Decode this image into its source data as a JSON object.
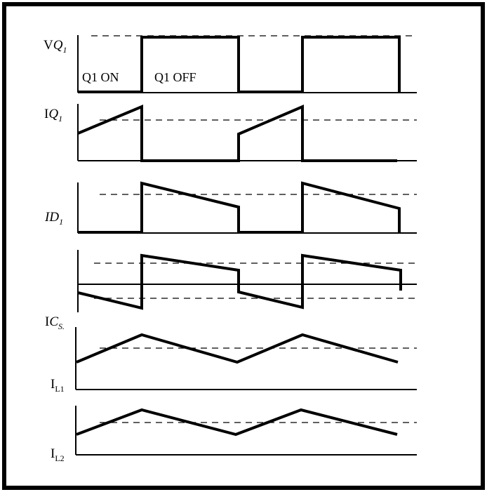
{
  "colors": {
    "ink": "#000000",
    "background": "#ffffff"
  },
  "labels": {
    "vq1": {
      "prefix": "V",
      "italic": "Q",
      "sub": "1"
    },
    "iq1": {
      "prefix": "I",
      "italic": "Q",
      "sub": "1"
    },
    "id1": {
      "prefix": "I",
      "italic": "D",
      "sub": "1"
    },
    "ics": {
      "prefix": "I",
      "italic": "C",
      "sub": "S."
    },
    "il1": {
      "prefix": "I",
      "italic": "",
      "sub": "L1"
    },
    "il2": {
      "prefix": "I",
      "italic": "",
      "sub": "L2"
    }
  },
  "annotations": {
    "on": "Q1 ON",
    "off": "Q1 OFF"
  }
}
